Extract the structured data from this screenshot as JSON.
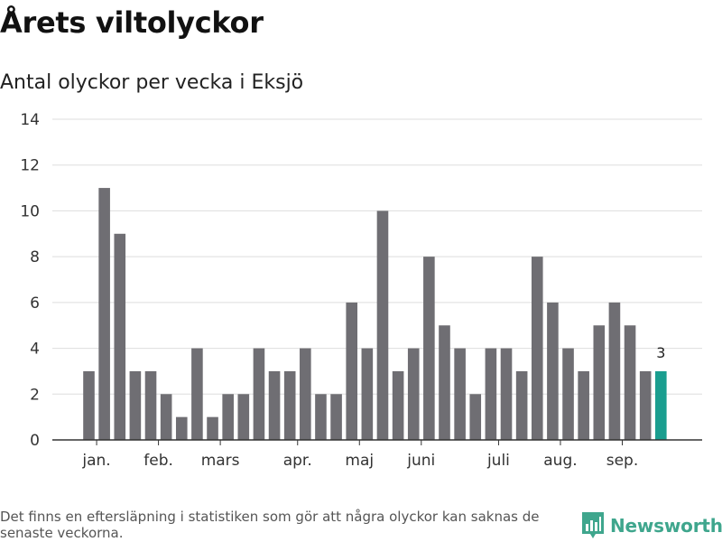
{
  "title": "Årets viltolyckor",
  "subtitle": "Antal olyckor per vecka i Eksjö",
  "footnote": "Det finns en eftersläpning i statistiken som gör att några olyckor kan saknas de senaste veckorna.",
  "brand": {
    "name": "Newsworthy",
    "icon": "newsworthy-logo-icon",
    "color": "#3fa68d"
  },
  "chart_data": {
    "type": "bar",
    "values": [
      3,
      11,
      9,
      3,
      3,
      2,
      1,
      4,
      1,
      2,
      2,
      4,
      3,
      3,
      4,
      2,
      2,
      6,
      4,
      10,
      3,
      4,
      8,
      5,
      4,
      2,
      4,
      4,
      3,
      8,
      6,
      4,
      3,
      5,
      6,
      5,
      3,
      3
    ],
    "highlight_index": 37,
    "highlight_label": "3",
    "x_tick_labels": [
      {
        "label": "jan.",
        "bar_index": 0.5
      },
      {
        "label": "feb.",
        "bar_index": 4.5
      },
      {
        "label": "mars",
        "bar_index": 8.5
      },
      {
        "label": "apr.",
        "bar_index": 13.5
      },
      {
        "label": "maj",
        "bar_index": 17.5
      },
      {
        "label": "juni",
        "bar_index": 21.5
      },
      {
        "label": "juli",
        "bar_index": 26.5
      },
      {
        "label": "aug.",
        "bar_index": 30.5
      },
      {
        "label": "sep.",
        "bar_index": 34.5
      }
    ],
    "y_ticks": [
      0,
      2,
      4,
      6,
      8,
      10,
      12,
      14
    ],
    "ylim": [
      0,
      14
    ],
    "xlabel": "",
    "ylabel": "",
    "grid": true,
    "colors": {
      "bar": "#6f6e73",
      "highlight": "#1a9e8f",
      "grid": "#dddddd",
      "axis": "#333333"
    }
  }
}
